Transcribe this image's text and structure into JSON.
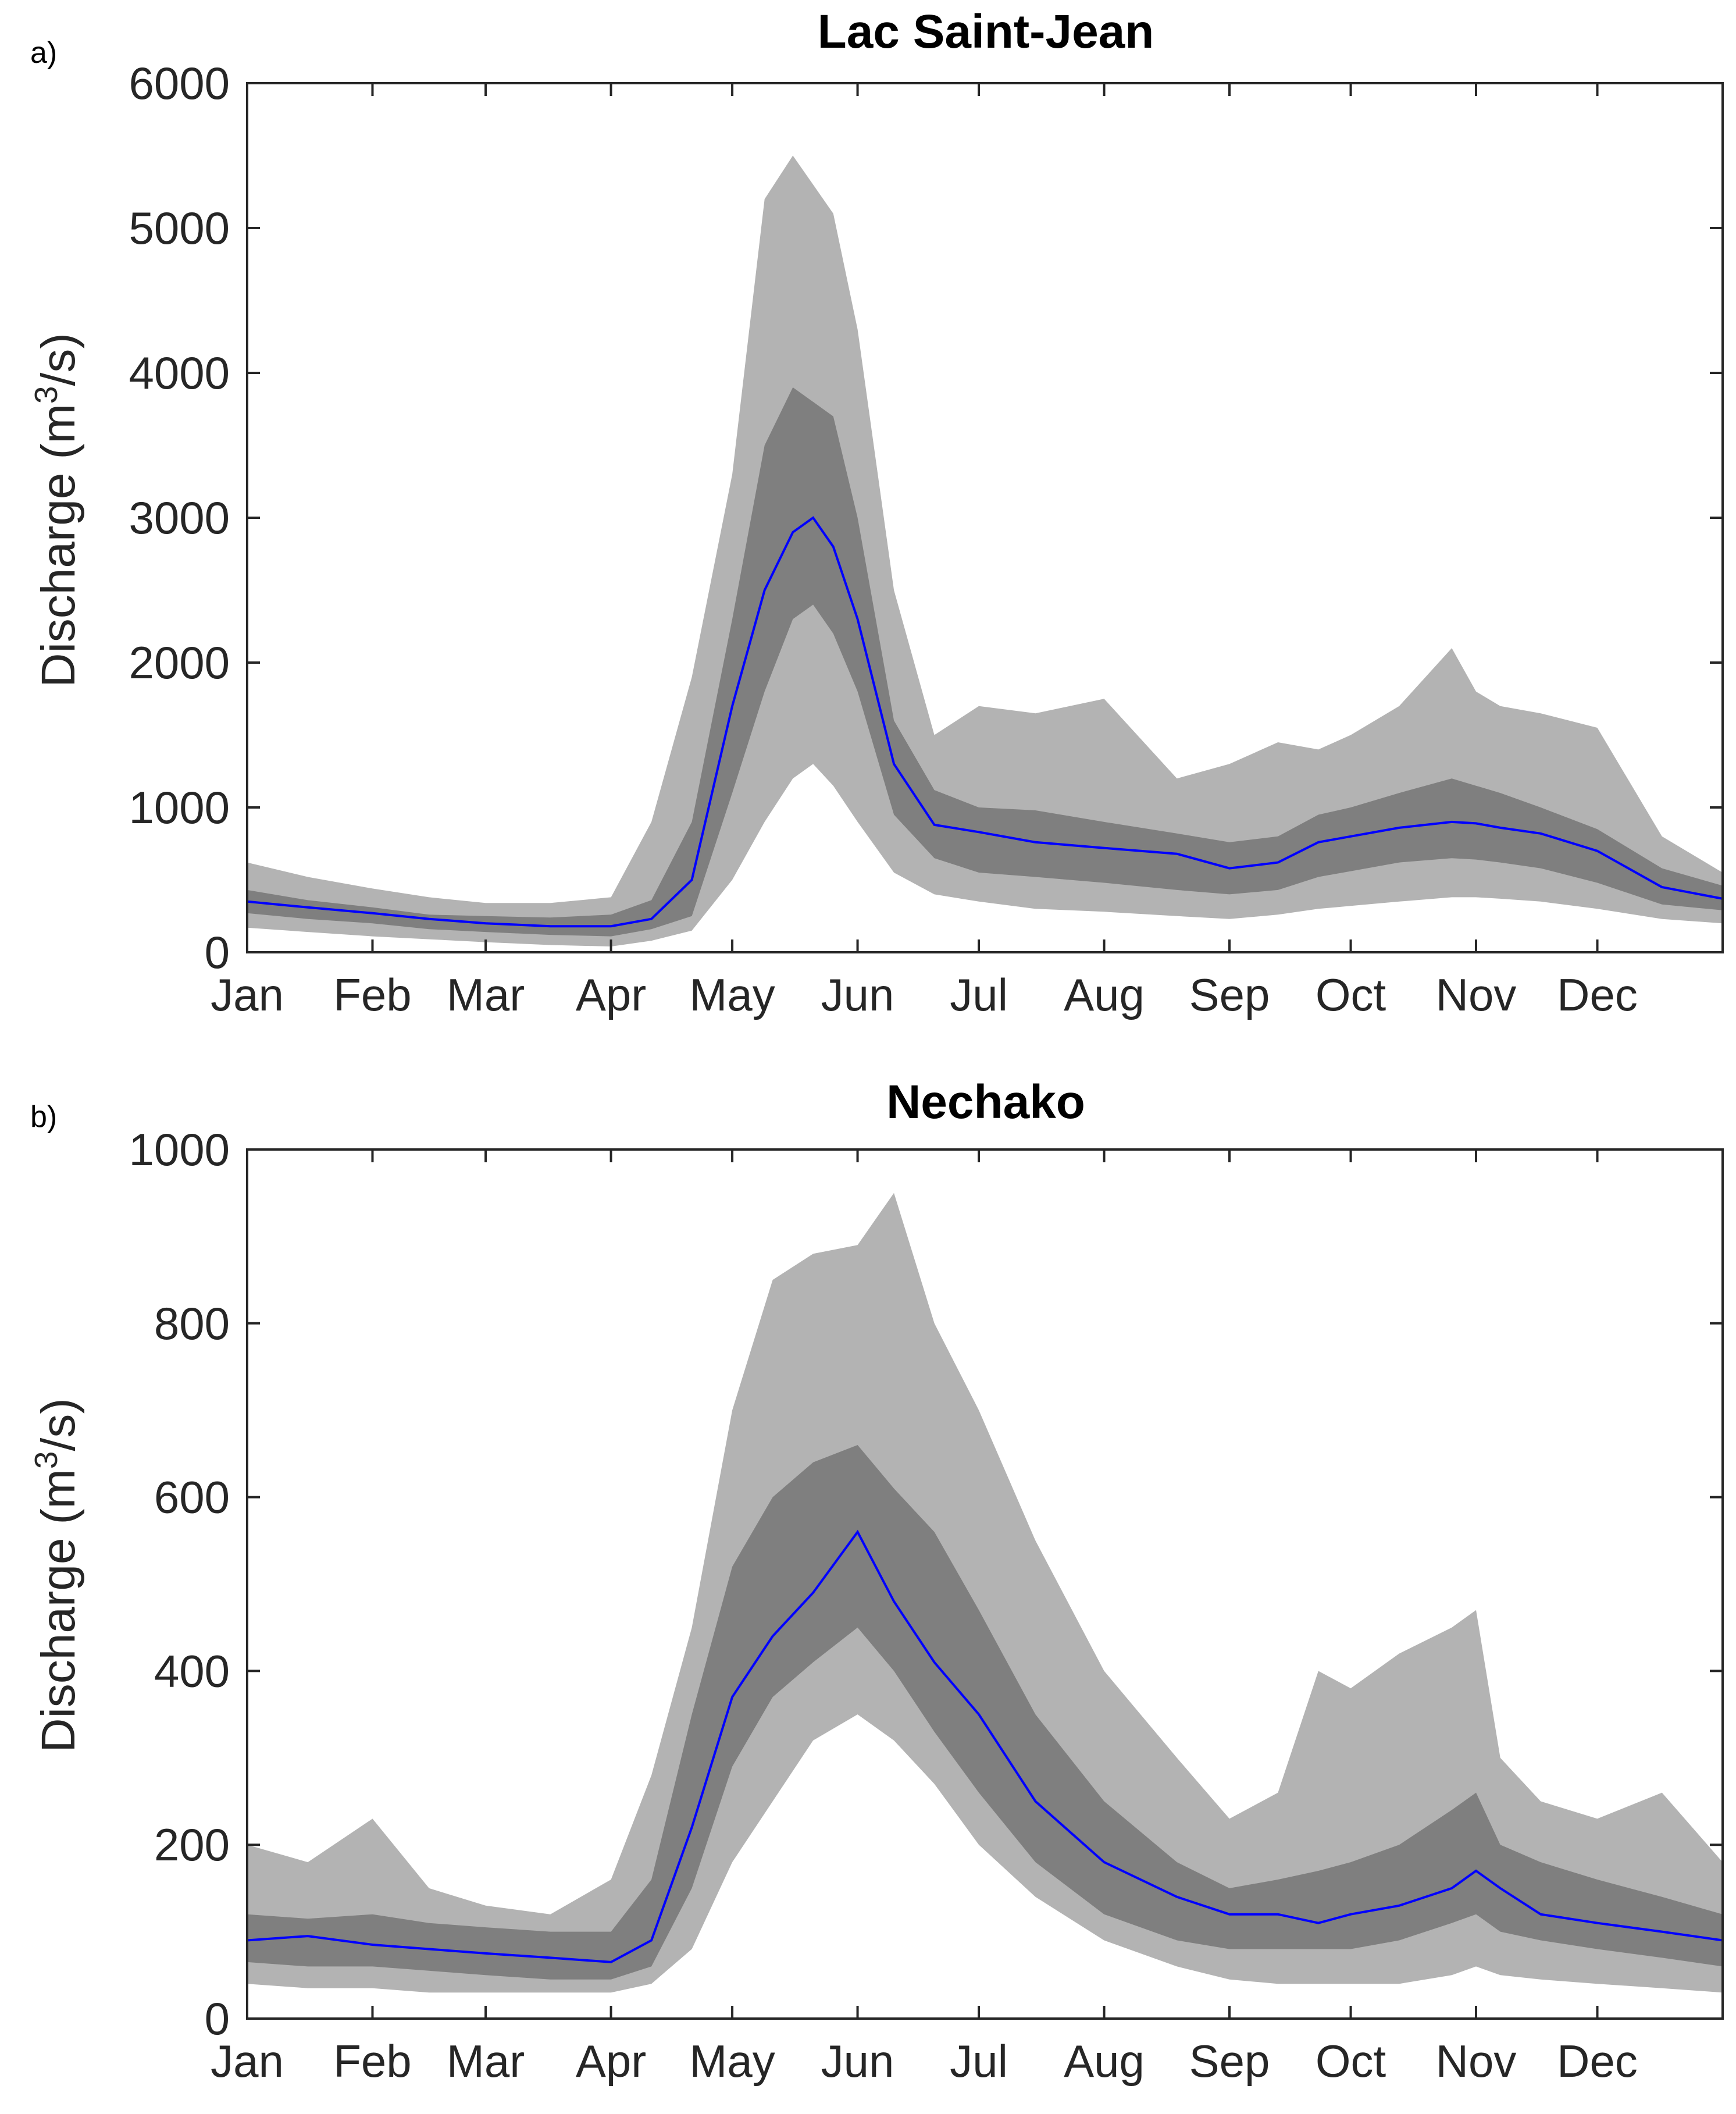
{
  "chart_data": [
    {
      "type": "area",
      "panel": "a)",
      "title": "Lac Saint-Jean",
      "ylabel_prefix": "Discharge (m",
      "ylabel_sup": "3",
      "ylabel_suffix": "/s)",
      "ylim": [
        0,
        6000
      ],
      "yticks": [
        0,
        1000,
        2000,
        3000,
        4000,
        5000,
        6000
      ],
      "ytick_labels": [
        "0",
        "1000",
        "2000",
        "3000",
        "4000",
        "5000",
        "6000"
      ],
      "xlim": [
        0,
        365
      ],
      "x": [
        0,
        15,
        31,
        45,
        59,
        75,
        90,
        100,
        110,
        120,
        128,
        135,
        140,
        145,
        151,
        160,
        170,
        181,
        195,
        212,
        230,
        243,
        255,
        265,
        273,
        285,
        298,
        304,
        310,
        320,
        334,
        350,
        365
      ],
      "month_positions": [
        0,
        31,
        59,
        90,
        120,
        151,
        181,
        212,
        243,
        273,
        304,
        334
      ],
      "categories": [
        "Jan",
        "Feb",
        "Mar",
        "Apr",
        "May",
        "Jun",
        "Jul",
        "Aug",
        "Sep",
        "Oct",
        "Nov",
        "Dec"
      ],
      "colors": {
        "outer_band": "#b3b3b3",
        "inner_band": "#7f7f7f",
        "median": "#0000ff"
      },
      "series": [
        {
          "name": "range-upper",
          "values": [
            620,
            520,
            440,
            380,
            340,
            340,
            380,
            900,
            1900,
            3300,
            5200,
            5500,
            5300,
            5100,
            4300,
            2500,
            1500,
            1700,
            1650,
            1750,
            1200,
            1300,
            1450,
            1400,
            1500,
            1700,
            2100,
            1800,
            1700,
            1650,
            1550,
            800,
            550
          ]
        },
        {
          "name": "q75",
          "values": [
            430,
            360,
            310,
            260,
            250,
            240,
            260,
            360,
            900,
            2300,
            3500,
            3900,
            3800,
            3700,
            3000,
            1600,
            1120,
            1000,
            980,
            900,
            820,
            760,
            800,
            950,
            1000,
            1100,
            1200,
            1150,
            1100,
            1000,
            850,
            580,
            460
          ]
        },
        {
          "name": "median",
          "values": [
            350,
            310,
            270,
            230,
            200,
            180,
            180,
            230,
            500,
            1700,
            2500,
            2900,
            3000,
            2800,
            2300,
            1300,
            880,
            830,
            760,
            720,
            680,
            580,
            620,
            760,
            800,
            860,
            900,
            890,
            860,
            820,
            700,
            450,
            370
          ]
        },
        {
          "name": "q25",
          "values": [
            270,
            230,
            200,
            160,
            140,
            120,
            110,
            160,
            250,
            1100,
            1800,
            2300,
            2400,
            2200,
            1800,
            950,
            650,
            550,
            520,
            480,
            430,
            400,
            430,
            520,
            560,
            620,
            650,
            640,
            620,
            580,
            480,
            330,
            290
          ]
        },
        {
          "name": "range-lower",
          "values": [
            170,
            140,
            110,
            90,
            70,
            50,
            40,
            80,
            150,
            500,
            900,
            1200,
            1300,
            1150,
            900,
            550,
            400,
            350,
            300,
            280,
            250,
            230,
            260,
            300,
            320,
            350,
            380,
            380,
            370,
            350,
            300,
            230,
            200
          ]
        }
      ]
    },
    {
      "type": "area",
      "panel": "b)",
      "title": "Nechako",
      "ylabel_prefix": "Discharge (m",
      "ylabel_sup": "3",
      "ylabel_suffix": "/s)",
      "ylim": [
        0,
        1000
      ],
      "yticks": [
        0,
        200,
        400,
        600,
        800,
        1000
      ],
      "ytick_labels": [
        "0",
        "200",
        "400",
        "600",
        "800",
        "1000"
      ],
      "xlim": [
        0,
        365
      ],
      "x": [
        0,
        15,
        31,
        45,
        59,
        75,
        90,
        100,
        110,
        120,
        130,
        140,
        151,
        160,
        170,
        181,
        195,
        212,
        230,
        243,
        255,
        265,
        273,
        285,
        298,
        304,
        310,
        320,
        334,
        350,
        365
      ],
      "month_positions": [
        0,
        31,
        59,
        90,
        120,
        151,
        181,
        212,
        243,
        273,
        304,
        334
      ],
      "categories": [
        "Jan",
        "Feb",
        "Mar",
        "Apr",
        "May",
        "Jun",
        "Jul",
        "Aug",
        "Sep",
        "Oct",
        "Nov",
        "Dec"
      ],
      "colors": {
        "outer_band": "#b3b3b3",
        "inner_band": "#7f7f7f",
        "median": "#0000ff"
      },
      "series": [
        {
          "name": "range-upper",
          "values": [
            200,
            180,
            230,
            150,
            130,
            120,
            160,
            280,
            450,
            700,
            850,
            880,
            890,
            950,
            800,
            700,
            550,
            400,
            300,
            230,
            260,
            400,
            380,
            420,
            450,
            470,
            300,
            250,
            230,
            260,
            180
          ]
        },
        {
          "name": "q75",
          "values": [
            120,
            115,
            120,
            110,
            105,
            100,
            100,
            160,
            350,
            520,
            600,
            640,
            660,
            610,
            560,
            470,
            350,
            250,
            180,
            150,
            160,
            170,
            180,
            200,
            240,
            260,
            200,
            180,
            160,
            140,
            120
          ]
        },
        {
          "name": "median",
          "values": [
            90,
            95,
            85,
            80,
            75,
            70,
            65,
            90,
            220,
            370,
            440,
            490,
            560,
            480,
            410,
            350,
            250,
            180,
            140,
            120,
            120,
            110,
            120,
            130,
            150,
            170,
            150,
            120,
            110,
            100,
            90
          ]
        },
        {
          "name": "q25",
          "values": [
            65,
            60,
            60,
            55,
            50,
            45,
            45,
            60,
            150,
            290,
            370,
            410,
            450,
            400,
            330,
            260,
            180,
            120,
            90,
            80,
            80,
            80,
            80,
            90,
            110,
            120,
            100,
            90,
            80,
            70,
            60
          ]
        },
        {
          "name": "range-lower",
          "values": [
            40,
            35,
            35,
            30,
            30,
            30,
            30,
            40,
            80,
            180,
            250,
            320,
            350,
            320,
            270,
            200,
            140,
            90,
            60,
            45,
            40,
            40,
            40,
            40,
            50,
            60,
            50,
            45,
            40,
            35,
            30
          ]
        }
      ]
    }
  ]
}
